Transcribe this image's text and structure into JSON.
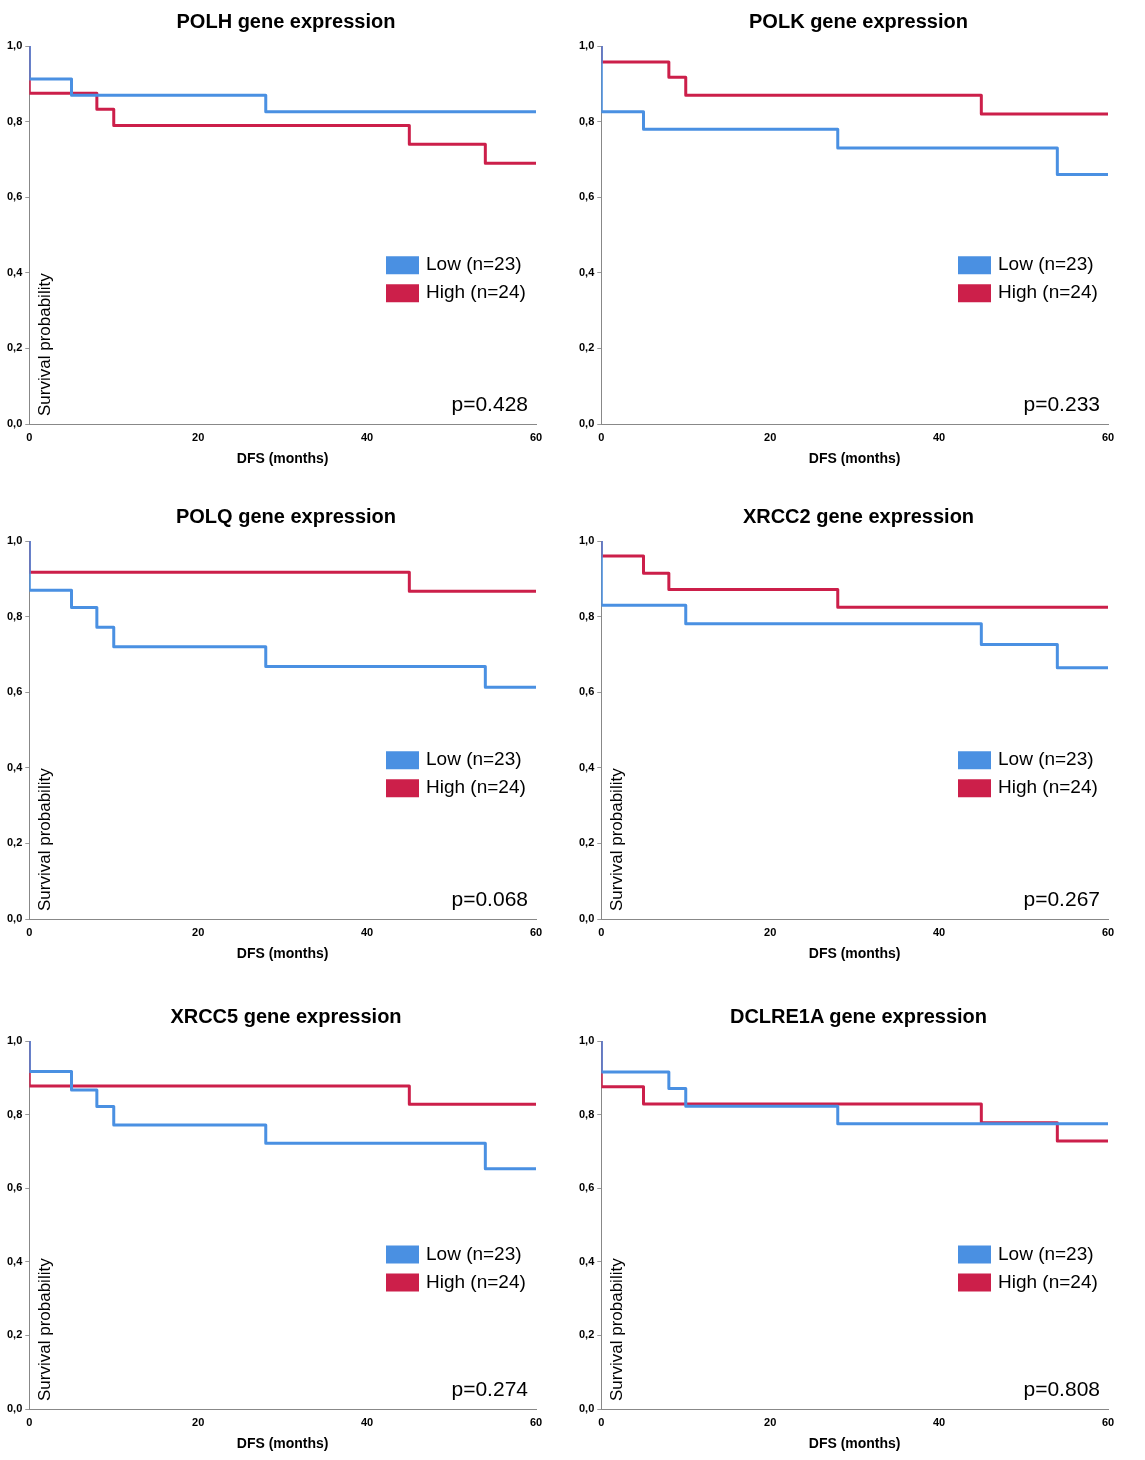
{
  "chart_data": [
    {
      "type": "step",
      "title": "POLH gene expression",
      "xlabel": "DFS (months)",
      "ylabel": "Survival probability",
      "xlim": [
        0,
        60
      ],
      "xticks": [
        0,
        20,
        40,
        60
      ],
      "ylim": [
        0,
        1
      ],
      "yticks": [
        {
          "value": 0,
          "label": "0,0"
        },
        {
          "value": 0.2,
          "label": "0,2"
        },
        {
          "value": 0.4,
          "label": "0,4"
        },
        {
          "value": 0.6,
          "label": "0,6"
        },
        {
          "value": 0.8,
          "label": "0,8"
        },
        {
          "value": 1,
          "label": "1,0"
        }
      ],
      "legend": "right",
      "annotations": [
        "p=0.428"
      ],
      "series": [
        {
          "name": "Low (n=23)",
          "color": "#4a90e2",
          "x": [
            0,
            0,
            5,
            28,
            60
          ],
          "values": [
            1,
            0.913,
            0.87,
            0.826,
            0.826
          ]
        },
        {
          "name": "High (n=24)",
          "color": "#cc1f4a",
          "x": [
            0,
            0,
            8,
            10,
            45,
            54,
            60
          ],
          "values": [
            1,
            0.875,
            0.833,
            0.79,
            0.74,
            0.69,
            0.69
          ]
        }
      ]
    },
    {
      "type": "step",
      "title": "POLK gene expression",
      "xlabel": "DFS (months)",
      "xlim": [
        0,
        60
      ],
      "xticks": [
        0,
        20,
        40,
        60
      ],
      "ylim": [
        0,
        1
      ],
      "yticks": [
        {
          "value": 0,
          "label": "0,0"
        },
        {
          "value": 0.2,
          "label": "0,2"
        },
        {
          "value": 0.4,
          "label": "0,4"
        },
        {
          "value": 0.6,
          "label": "0,6"
        },
        {
          "value": 0.8,
          "label": "0,8"
        },
        {
          "value": 1,
          "label": "1,0"
        }
      ],
      "legend": "right",
      "annotations": [
        "p=0.233"
      ],
      "series": [
        {
          "name": "Low (n=23)",
          "color": "#4a90e2",
          "x": [
            0,
            0,
            5,
            28,
            54,
            60
          ],
          "values": [
            1,
            0.826,
            0.78,
            0.73,
            0.66,
            0.66
          ]
        },
        {
          "name": "High (n=24)",
          "color": "#cc1f4a",
          "x": [
            0,
            0,
            8,
            10,
            45,
            60
          ],
          "values": [
            1,
            0.958,
            0.917,
            0.87,
            0.82,
            0.82
          ]
        }
      ]
    },
    {
      "type": "step",
      "title": "POLQ gene expression",
      "xlabel": "DFS (months)",
      "ylabel": "Survival probability",
      "xlim": [
        0,
        60
      ],
      "xticks": [
        0,
        20,
        40,
        60
      ],
      "ylim": [
        0,
        1
      ],
      "yticks": [
        {
          "value": 0,
          "label": "0,0"
        },
        {
          "value": 0.2,
          "label": "0,2"
        },
        {
          "value": 0.4,
          "label": "0,4"
        },
        {
          "value": 0.6,
          "label": "0,6"
        },
        {
          "value": 0.8,
          "label": "0,8"
        },
        {
          "value": 1,
          "label": "1,0"
        }
      ],
      "legend": "right",
      "annotations": [
        "p=0.068"
      ],
      "series": [
        {
          "name": "Low (n=23)",
          "color": "#4a90e2",
          "x": [
            0,
            0,
            5,
            8,
            10,
            28,
            54,
            60
          ],
          "values": [
            1,
            0.87,
            0.824,
            0.772,
            0.72,
            0.668,
            0.613,
            0.613
          ]
        },
        {
          "name": "High (n=24)",
          "color": "#cc1f4a",
          "x": [
            0,
            0,
            45,
            60
          ],
          "values": [
            1,
            0.917,
            0.867,
            0.867
          ]
        }
      ]
    },
    {
      "type": "step",
      "title": "XRCC2 gene expression",
      "xlabel": "DFS (months)",
      "ylabel": "Survival probability",
      "xlim": [
        0,
        60
      ],
      "xticks": [
        0,
        20,
        40,
        60
      ],
      "ylim": [
        0,
        1
      ],
      "yticks": [
        {
          "value": 0,
          "label": "0,0"
        },
        {
          "value": 0.2,
          "label": "0,2"
        },
        {
          "value": 0.4,
          "label": "0,4"
        },
        {
          "value": 0.6,
          "label": "0,6"
        },
        {
          "value": 0.8,
          "label": "0,8"
        },
        {
          "value": 1,
          "label": "1,0"
        }
      ],
      "legend": "right",
      "annotations": [
        "p=0.267"
      ],
      "series": [
        {
          "name": "Low (n=23)",
          "color": "#4a90e2",
          "x": [
            0,
            0,
            10,
            45,
            54,
            60
          ],
          "values": [
            1,
            0.83,
            0.781,
            0.726,
            0.665,
            0.665
          ]
        },
        {
          "name": "High (n=24)",
          "color": "#cc1f4a",
          "x": [
            0,
            0,
            5,
            8,
            28,
            60
          ],
          "values": [
            1,
            0.96,
            0.915,
            0.872,
            0.825,
            0.825
          ]
        }
      ]
    },
    {
      "type": "step",
      "title": "XRCC5 gene expression",
      "xlabel": "DFS (months)",
      "ylabel": "Survival probability",
      "xlim": [
        0,
        60
      ],
      "xticks": [
        0,
        20,
        40,
        60
      ],
      "ylim": [
        0,
        1
      ],
      "yticks": [
        {
          "value": 0,
          "label": "0,0"
        },
        {
          "value": 0.2,
          "label": "0,2"
        },
        {
          "value": 0.4,
          "label": "0,4"
        },
        {
          "value": 0.6,
          "label": "0,6"
        },
        {
          "value": 0.8,
          "label": "0,8"
        },
        {
          "value": 1,
          "label": "1,0"
        }
      ],
      "legend": "right",
      "annotations": [
        "p=0.274"
      ],
      "series": [
        {
          "name": "Low (n=23)",
          "color": "#4a90e2",
          "x": [
            0,
            0,
            5,
            8,
            10,
            28,
            54,
            60
          ],
          "values": [
            1,
            0.917,
            0.867,
            0.822,
            0.772,
            0.722,
            0.653,
            0.653
          ]
        },
        {
          "name": "High (n=24)",
          "color": "#cc1f4a",
          "x": [
            0,
            0,
            45,
            60
          ],
          "values": [
            1,
            0.878,
            0.828,
            0.828
          ]
        }
      ]
    },
    {
      "type": "step",
      "title": "DCLRE1A gene expression",
      "xlabel": "DFS (months)",
      "ylabel": "Survival probability",
      "xlim": [
        0,
        60
      ],
      "xticks": [
        0,
        20,
        40,
        60
      ],
      "ylim": [
        0,
        1
      ],
      "yticks": [
        {
          "value": 0,
          "label": "0,0"
        },
        {
          "value": 0.2,
          "label": "0,2"
        },
        {
          "value": 0.4,
          "label": "0,4"
        },
        {
          "value": 0.6,
          "label": "0,6"
        },
        {
          "value": 0.8,
          "label": "0,8"
        },
        {
          "value": 1,
          "label": "1,0"
        }
      ],
      "legend": "right",
      "annotations": [
        "p=0.808"
      ],
      "series": [
        {
          "name": "Low (n=23)",
          "color": "#4a90e2",
          "x": [
            0,
            0,
            8,
            10,
            28,
            60
          ],
          "values": [
            1,
            0.916,
            0.871,
            0.823,
            0.775,
            0.775
          ]
        },
        {
          "name": "High (n=24)",
          "color": "#cc1f4a",
          "x": [
            0,
            0,
            5,
            45,
            54,
            60
          ],
          "values": [
            1,
            0.876,
            0.829,
            0.778,
            0.728,
            0.728
          ]
        }
      ]
    }
  ]
}
